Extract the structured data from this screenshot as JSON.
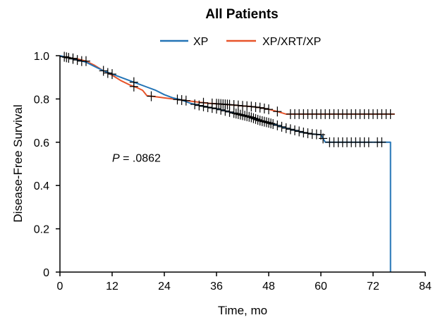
{
  "chart_data": {
    "type": "line",
    "subtype": "kaplan-meier",
    "title": "All Patients",
    "xlabel": "Time, mo",
    "ylabel": "Disease-Free Survival",
    "xlim": [
      0,
      84
    ],
    "ylim": [
      0,
      1.0
    ],
    "x_ticks": [
      0,
      12,
      24,
      36,
      48,
      60,
      72,
      84
    ],
    "x_tick_labels": [
      "0",
      "12",
      "24",
      "36",
      "48",
      "60",
      "72",
      "84"
    ],
    "y_ticks": [
      0,
      0.2,
      0.4,
      0.6,
      0.8,
      1.0
    ],
    "y_tick_labels": [
      "0",
      "0.2",
      "0.4",
      "0.6",
      "0.8",
      "1.0"
    ],
    "grid": false,
    "legend_position": "top",
    "annotation": {
      "p_label": "P",
      "p_value": " = .0862",
      "x": 12,
      "y": 0.5
    },
    "series": [
      {
        "name": "XP",
        "color": "#2374b6",
        "points": [
          [
            0,
            1.0
          ],
          [
            2,
            0.99
          ],
          [
            4,
            0.98
          ],
          [
            6,
            0.97
          ],
          [
            8,
            0.95
          ],
          [
            10,
            0.93
          ],
          [
            12,
            0.915
          ],
          [
            14,
            0.9
          ],
          [
            16,
            0.885
          ],
          [
            18,
            0.87
          ],
          [
            20,
            0.855
          ],
          [
            22,
            0.84
          ],
          [
            24,
            0.82
          ],
          [
            26,
            0.805
          ],
          [
            28,
            0.795
          ],
          [
            30,
            0.78
          ],
          [
            32,
            0.77
          ],
          [
            34,
            0.762
          ],
          [
            36,
            0.755
          ],
          [
            38,
            0.745
          ],
          [
            40,
            0.735
          ],
          [
            42,
            0.725
          ],
          [
            44,
            0.715
          ],
          [
            46,
            0.7
          ],
          [
            48,
            0.69
          ],
          [
            50,
            0.678
          ],
          [
            52,
            0.665
          ],
          [
            54,
            0.655
          ],
          [
            56,
            0.645
          ],
          [
            58,
            0.638
          ],
          [
            60,
            0.635
          ],
          [
            61,
            0.6
          ],
          [
            66,
            0.6
          ],
          [
            76,
            0.6
          ],
          [
            76,
            0.0
          ]
        ],
        "censor_x": [
          2,
          3,
          4,
          5,
          10,
          12,
          17,
          28,
          31,
          32,
          33,
          34,
          35,
          36,
          37,
          38,
          39,
          40,
          40.5,
          41,
          41.5,
          42,
          42.5,
          43,
          43.5,
          44,
          44.5,
          45,
          45.5,
          46,
          46.5,
          47,
          47.5,
          48,
          48.5,
          49,
          50,
          51,
          52,
          53,
          54,
          55,
          56,
          57,
          58,
          59,
          60,
          60.5,
          62,
          63,
          64,
          65,
          66,
          67,
          68,
          69,
          70,
          71,
          73,
          74
        ]
      },
      {
        "name": "XP/XRT/XP",
        "color": "#e8542a",
        "points": [
          [
            0,
            1.0
          ],
          [
            2,
            0.99
          ],
          [
            4,
            0.985
          ],
          [
            6,
            0.975
          ],
          [
            8,
            0.955
          ],
          [
            10,
            0.93
          ],
          [
            12,
            0.91
          ],
          [
            14,
            0.885
          ],
          [
            16,
            0.865
          ],
          [
            18,
            0.85
          ],
          [
            19,
            0.84
          ],
          [
            20,
            0.815
          ],
          [
            22,
            0.81
          ],
          [
            24,
            0.805
          ],
          [
            26,
            0.8
          ],
          [
            28,
            0.795
          ],
          [
            30,
            0.79
          ],
          [
            32,
            0.785
          ],
          [
            34,
            0.78
          ],
          [
            36,
            0.778
          ],
          [
            38,
            0.775
          ],
          [
            40,
            0.772
          ],
          [
            42,
            0.768
          ],
          [
            44,
            0.765
          ],
          [
            46,
            0.76
          ],
          [
            48,
            0.752
          ],
          [
            50,
            0.742
          ],
          [
            52,
            0.73
          ],
          [
            54,
            0.73
          ],
          [
            60,
            0.73
          ],
          [
            77,
            0.73
          ]
        ],
        "censor_x": [
          1,
          1.5,
          3,
          6,
          11,
          17,
          21,
          27,
          29,
          33,
          35,
          36,
          36.5,
          37,
          37.5,
          38,
          38.5,
          39,
          40,
          41,
          42,
          43,
          44,
          45,
          46,
          47,
          48,
          50,
          53,
          54,
          55,
          56,
          57,
          58,
          59,
          60,
          61,
          62,
          63,
          64,
          65,
          66,
          67,
          68,
          69,
          70,
          71,
          72,
          73,
          74,
          75,
          76
        ]
      }
    ]
  }
}
